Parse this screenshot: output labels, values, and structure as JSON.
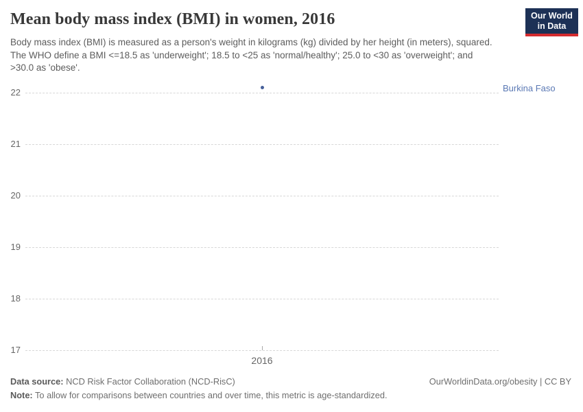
{
  "header": {
    "title": "Mean body mass index (BMI) in women, 2016",
    "subtitle": "Body mass index (BMI) is measured as a person's weight in kilograms (kg) divided by her height (in meters), squared. The WHO define a BMI <=18.5 as 'underweight'; 18.5 to <25 as 'normal/healthy'; 25.0 to <30 as 'overweight'; and >30.0 as 'obese'.",
    "logo": {
      "line1": "Our World",
      "line2": "in Data",
      "bg_color": "#1d3156",
      "accent_color": "#d42b2f"
    }
  },
  "chart_data": {
    "type": "scatter",
    "title": "Mean body mass index (BMI) in women, 2016",
    "xlabel": "",
    "ylabel": "",
    "xlim": [
      2015.5,
      2016.5
    ],
    "ylim": [
      17,
      22.33
    ],
    "yticks": [
      17,
      18,
      19,
      20,
      21,
      22
    ],
    "xticks": [
      2016
    ],
    "grid": "horizontal-dashed",
    "legend_position": "right-of-last-point",
    "series": [
      {
        "name": "Burkina Faso",
        "color": "#46609a",
        "label_color": "#5a78b4",
        "points": [
          {
            "x": 2016,
            "y": 22.1
          }
        ]
      }
    ]
  },
  "footer": {
    "data_source_label": "Data source:",
    "data_source_text": " NCD Risk Factor Collaboration (NCD-RisC)",
    "note_label": "Note:",
    "note_text": " To allow for comparisons between countries and over time, this metric is age-standardized.",
    "license_text": "OurWorldinData.org/obesity | CC BY"
  }
}
